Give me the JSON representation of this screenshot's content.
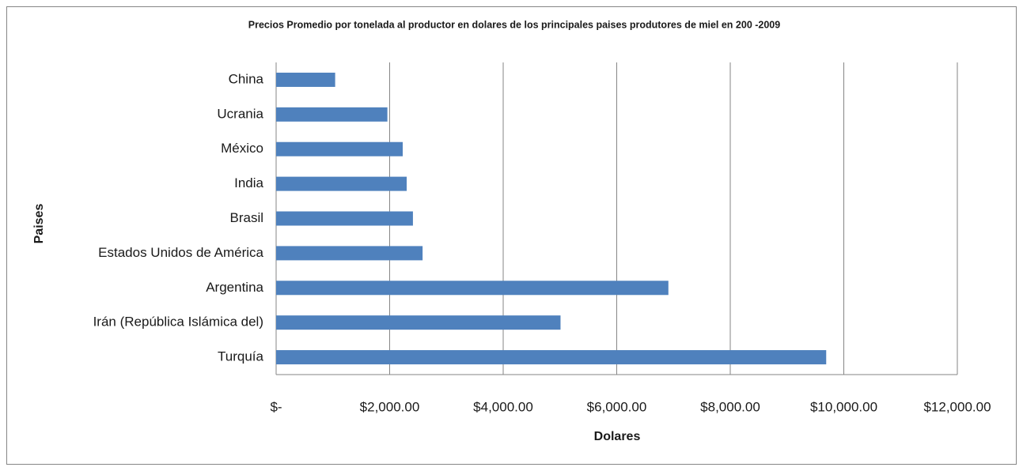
{
  "chart_data": {
    "type": "barh",
    "title": "Precios  Promedio por tonelada al productor en dolares  de los principales paises produtores  de miel en 200 -2009",
    "xlabel": "Dolares",
    "ylabel": "Paises",
    "categories": [
      "China",
      "Ucrania",
      "México",
      "India",
      "Brasil",
      "Estados Unidos de América",
      "Argentina",
      "Irán (República Islámica del)",
      "Turquía"
    ],
    "values": [
      1040,
      1960,
      2230,
      2300,
      2410,
      2580,
      6910,
      5010,
      9690
    ],
    "color": "#4f81bd",
    "xlim": [
      0,
      12000
    ],
    "xticks": [
      {
        "value": 0,
        "label": "$-"
      },
      {
        "value": 2000,
        "label": "$2,000.00"
      },
      {
        "value": 4000,
        "label": "$4,000.00"
      },
      {
        "value": 6000,
        "label": "$6,000.00"
      },
      {
        "value": 8000,
        "label": "$8,000.00"
      },
      {
        "value": 10000,
        "label": "$10,000.00"
      },
      {
        "value": 12000,
        "label": "$12,000.00"
      }
    ],
    "grid": true
  }
}
